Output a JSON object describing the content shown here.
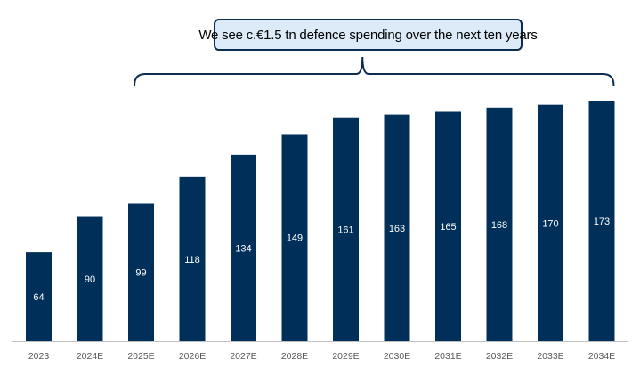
{
  "annotation": {
    "text": "We see c.€1.5 tn defence spending over the next ten years",
    "span_from": "2025E",
    "span_to": "2034E"
  },
  "colors": {
    "bar": "#00305a",
    "label": "#ffffff",
    "axis": "#bfbfbf",
    "tick_text": "#595959",
    "brace": "#0d2c4f"
  },
  "chart_data": {
    "type": "bar",
    "title": "",
    "xlabel": "",
    "ylabel": "",
    "categories": [
      "2023",
      "2024E",
      "2025E",
      "2026E",
      "2027E",
      "2028E",
      "2029E",
      "2030E",
      "2031E",
      "2032E",
      "2033E",
      "2034E"
    ],
    "values": [
      64,
      90,
      99,
      118,
      134,
      149,
      161,
      163,
      165,
      168,
      170,
      173
    ],
    "ylim": [
      0,
      173
    ],
    "grid": false,
    "legend": "none",
    "data_labels": true
  }
}
